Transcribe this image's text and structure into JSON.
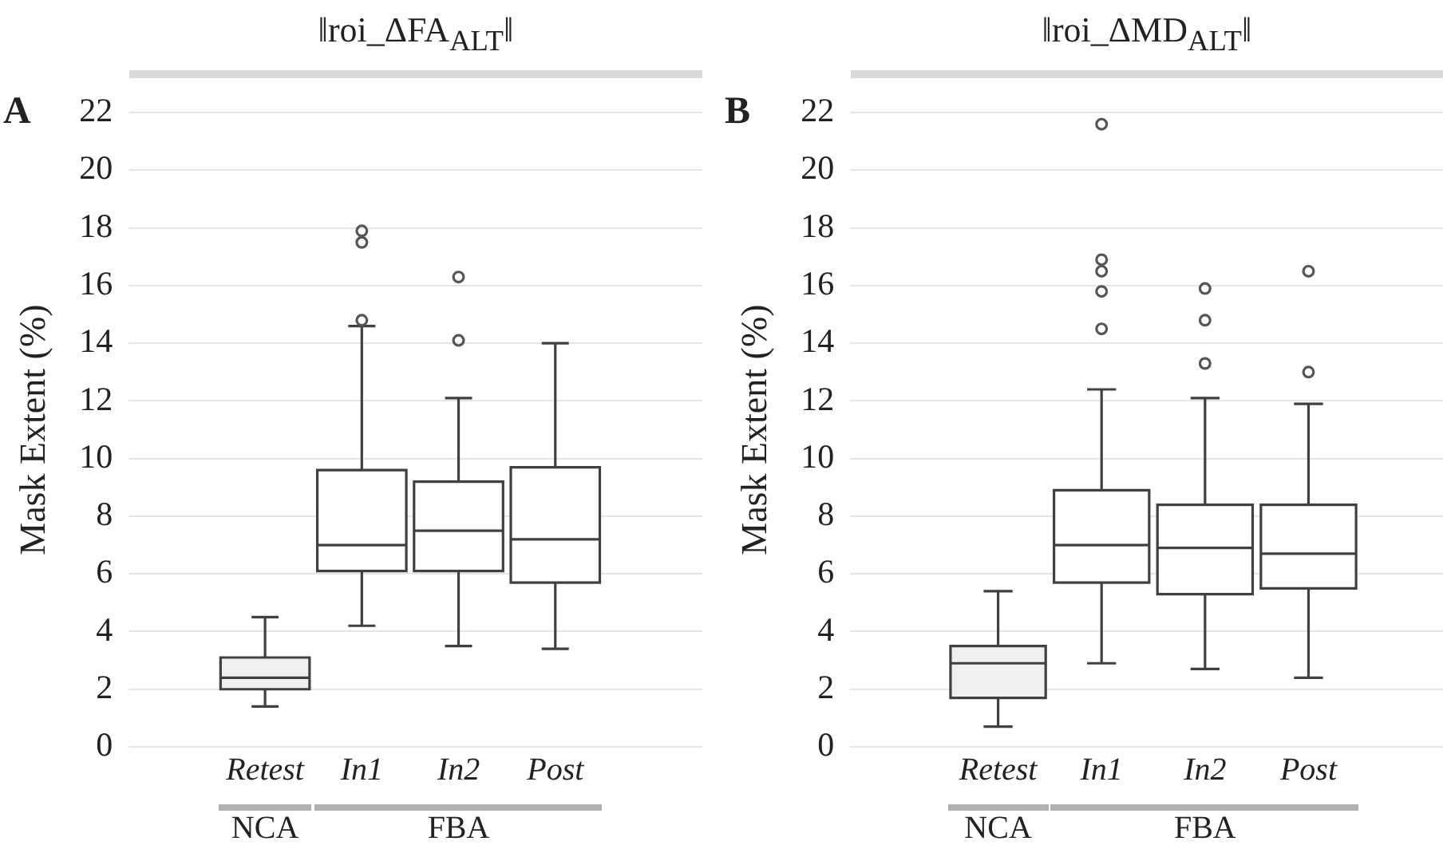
{
  "chart_data": [
    {
      "type": "box",
      "title": "‖roi_ΔFA$_{ALT}$‖",
      "ylabel": "Mask Extent (%)",
      "categories": [
        "Retest",
        "In1",
        "In2",
        "Post"
      ],
      "boxes": [
        {
          "low": 1.4,
          "q1": 2.0,
          "median": 2.4,
          "q3": 3.1,
          "high": 4.5
        },
        {
          "low": 4.2,
          "q1": 6.1,
          "median": 7.0,
          "q3": 9.6,
          "high": 14.6,
          "outliers": [
            14.8,
            17.5,
            17.9
          ]
        },
        {
          "low": 3.5,
          "q1": 6.1,
          "median": 7.5,
          "q3": 9.2,
          "high": 12.1,
          "outliers": [
            14.1,
            16.3
          ]
        },
        {
          "low": 3.4,
          "q1": 5.7,
          "median": 7.2,
          "q3": 9.7,
          "high": 14.0
        }
      ],
      "color": "#404040",
      "colors": [
        "#f0f0f0",
        "#ffffff",
        "#ffffff",
        "#ffffff"
      ],
      "ylim": [
        0,
        22
      ],
      "yticks": [
        0,
        2,
        4,
        6,
        8,
        10,
        12,
        14,
        16,
        18,
        20,
        22
      ],
      "grid": "y",
      "annotations": [
        "A",
        "NCA",
        "FBA"
      ]
    },
    {
      "type": "box",
      "title": "‖roi_ΔMD$_{ALT}$‖",
      "ylabel": "Mask Extent (%)",
      "categories": [
        "Retest",
        "In1",
        "In2",
        "Post"
      ],
      "boxes": [
        {
          "low": 0.7,
          "q1": 1.7,
          "median": 2.9,
          "q3": 3.5,
          "high": 5.4
        },
        {
          "low": 2.9,
          "q1": 5.7,
          "median": 7.0,
          "q3": 8.9,
          "high": 12.4,
          "outliers": [
            14.5,
            15.8,
            16.5,
            16.9,
            21.6
          ]
        },
        {
          "low": 2.7,
          "q1": 5.3,
          "median": 6.9,
          "q3": 8.4,
          "high": 12.1,
          "outliers": [
            13.3,
            14.8,
            15.9
          ]
        },
        {
          "low": 2.4,
          "q1": 5.5,
          "median": 6.7,
          "q3": 8.4,
          "high": 11.9,
          "outliers": [
            13.0,
            16.5
          ]
        }
      ],
      "color": "#404040",
      "colors": [
        "#f0f0f0",
        "#ffffff",
        "#ffffff",
        "#ffffff"
      ],
      "ylim": [
        0,
        22
      ],
      "yticks": [
        0,
        2,
        4,
        6,
        8,
        10,
        12,
        14,
        16,
        18,
        20,
        22
      ],
      "grid": "y",
      "annotations": [
        "B",
        "NCA",
        "FBA"
      ]
    }
  ]
}
